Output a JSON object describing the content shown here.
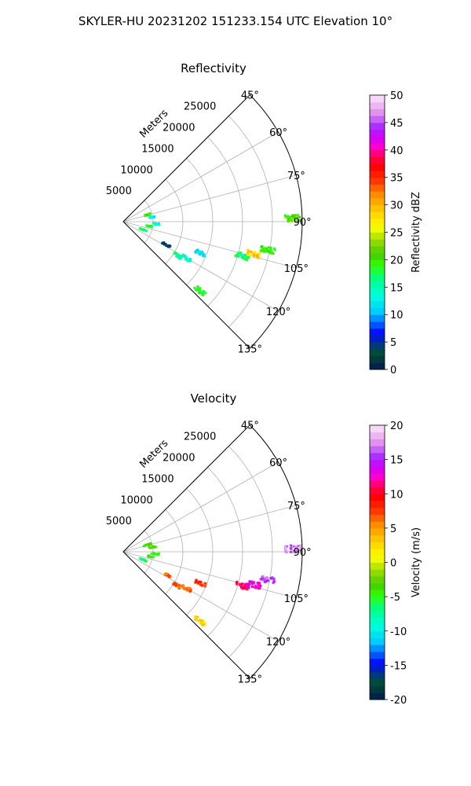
{
  "suptitle": "SKYLER-HU  20231202  151233.154 UTC Elevation 10°",
  "chart_data": [
    {
      "type": "polar-sector-scatter",
      "title": "Reflectivity",
      "radial_label": "Meters",
      "radial_ticks": [
        5000,
        10000,
        15000,
        20000,
        25000
      ],
      "rlim": [
        0,
        30000
      ],
      "angle_ticks": [
        45,
        60,
        75,
        90,
        105,
        120,
        135
      ],
      "angle_labels": [
        "45°",
        "60°",
        "75°",
        "90°",
        "105°",
        "120°",
        "135°"
      ],
      "theta_range_deg": [
        45,
        135
      ],
      "grid": true,
      "colorbar": {
        "label": "Reflectivity dBZ",
        "range": [
          0,
          50
        ],
        "ticks": [
          0,
          5,
          10,
          15,
          20,
          25,
          30,
          35,
          40,
          45,
          50
        ],
        "colormap": "pyart_NWSRef"
      },
      "clusters": [
        {
          "azimuth_deg": 74,
          "range_m": 4200,
          "value": 20
        },
        {
          "azimuth_deg": 81,
          "range_m": 5000,
          "value": 13
        },
        {
          "azimuth_deg": 94,
          "range_m": 5400,
          "value": 14
        },
        {
          "azimuth_deg": 100,
          "range_m": 4600,
          "value": 18
        },
        {
          "azimuth_deg": 112,
          "range_m": 3600,
          "value": 17
        },
        {
          "azimuth_deg": 118,
          "range_m": 8200,
          "value": 3
        },
        {
          "azimuth_deg": 122,
          "range_m": 10800,
          "value": 16
        },
        {
          "azimuth_deg": 120,
          "range_m": 12300,
          "value": 14
        },
        {
          "azimuth_deg": 112,
          "range_m": 14000,
          "value": 11
        },
        {
          "azimuth_deg": 132,
          "range_m": 17300,
          "value": 19
        },
        {
          "azimuth_deg": 106,
          "range_m": 20800,
          "value": 17
        },
        {
          "azimuth_deg": 101,
          "range_m": 24700,
          "value": 19
        },
        {
          "azimuth_deg": 104,
          "range_m": 22600,
          "value": 29
        },
        {
          "azimuth_deg": 89,
          "range_m": 28500,
          "value": 21
        }
      ]
    },
    {
      "type": "polar-sector-scatter",
      "title": "Velocity",
      "radial_label": "Meters",
      "radial_ticks": [
        5000,
        10000,
        15000,
        20000,
        25000
      ],
      "rlim": [
        0,
        30000
      ],
      "angle_ticks": [
        45,
        60,
        75,
        90,
        105,
        120,
        135
      ],
      "angle_labels": [
        "45°",
        "60°",
        "75°",
        "90°",
        "105°",
        "120°",
        "135°"
      ],
      "theta_range_deg": [
        45,
        135
      ],
      "grid": true,
      "colorbar": {
        "label": "Velocity (m/s)",
        "range": [
          -20,
          20
        ],
        "ticks": [
          -20,
          -15,
          -10,
          -5,
          0,
          5,
          10,
          15,
          20
        ],
        "colormap": "pyart_BuDRd18"
      },
      "clusters": [
        {
          "azimuth_deg": 74,
          "range_m": 4200,
          "value": -4
        },
        {
          "azimuth_deg": 81,
          "range_m": 5000,
          "value": -3
        },
        {
          "azimuth_deg": 94,
          "range_m": 5400,
          "value": -5
        },
        {
          "azimuth_deg": 100,
          "range_m": 4600,
          "value": -4
        },
        {
          "azimuth_deg": 112,
          "range_m": 3600,
          "value": -6
        },
        {
          "azimuth_deg": 118,
          "range_m": 8200,
          "value": 7
        },
        {
          "azimuth_deg": 122,
          "range_m": 10800,
          "value": 7
        },
        {
          "azimuth_deg": 120,
          "range_m": 12300,
          "value": 7
        },
        {
          "azimuth_deg": 112,
          "range_m": 14000,
          "value": 8
        },
        {
          "azimuth_deg": 132,
          "range_m": 17300,
          "value": 3
        },
        {
          "azimuth_deg": 106,
          "range_m": 20800,
          "value": 11
        },
        {
          "azimuth_deg": 101,
          "range_m": 24700,
          "value": 16
        },
        {
          "azimuth_deg": 104,
          "range_m": 22600,
          "value": 13
        },
        {
          "azimuth_deg": 89,
          "range_m": 28500,
          "value": 17
        }
      ]
    }
  ]
}
